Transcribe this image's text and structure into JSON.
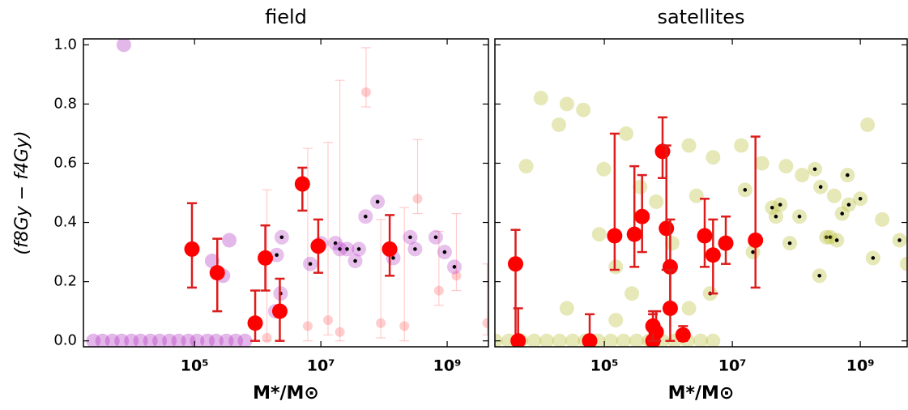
{
  "chart_data": [
    {
      "type": "scatter",
      "title": "field",
      "ylabel": "(f8Gy − f4Gy)",
      "xlabel": "M*/M⊙",
      "xscale": "log",
      "xlim": [
        1740,
        4500000000
      ],
      "ylim": [
        -0.02,
        1.02
      ],
      "xticks": [
        {
          "value": 100000,
          "label": "10⁵"
        },
        {
          "value": 10000000,
          "label": "10⁷"
        },
        {
          "value": 1000000000,
          "label": "10⁹"
        }
      ],
      "yticks": [
        {
          "value": 0,
          "label": "0.0"
        },
        {
          "value": 0.2,
          "label": "0.2"
        },
        {
          "value": 0.4,
          "label": "0.4"
        },
        {
          "value": 0.6,
          "label": "0.6"
        },
        {
          "value": 0.8,
          "label": "0.8"
        },
        {
          "value": 1,
          "label": "1.0"
        }
      ],
      "series": [
        {
          "color": "#ff7070",
          "opacity": 0.35,
          "x": [
            52000000,
            740000000,
            1400000000,
            340000000,
            4300000000,
            89000000,
            20000000,
            6200000,
            210000000,
            1400000,
            13000000
          ],
          "values": [
            0.84,
            0.17,
            0.22,
            0.48,
            0.06,
            0.06,
            0.03,
            0.05,
            0.05,
            0.01,
            0.07
          ],
          "err_low": [
            0.05,
            0.05,
            0.05,
            0.05,
            0.04,
            0.05,
            0.03,
            0.05,
            0.05,
            0.01,
            0.05
          ],
          "err_high": [
            0.15,
            0.2,
            0.21,
            0.2,
            0.2,
            0.35,
            0.85,
            0.6,
            0.4,
            0.5,
            0.6
          ]
        },
        {
          "color": "#b030c0",
          "opacity": 0.35,
          "x": [
            7600,
            355000,
            190000,
            282000,
            2500,
            3500,
            5000,
            7000,
            10000,
            14000,
            20000,
            28000,
            40000,
            56000,
            80000,
            110000,
            160000,
            220000,
            320000,
            450000,
            630000
          ],
          "values": [
            1.0,
            0.34,
            0.27,
            0.22,
            0,
            0,
            0,
            0,
            0,
            0,
            0,
            0,
            0,
            0,
            0,
            0,
            0,
            0,
            0,
            0,
            0
          ]
        },
        {
          "color": "#b030c0",
          "opacity": 0.3,
          "marker": "dot",
          "x": [
            2400000,
            2000000,
            6800000,
            10000000,
            17000000,
            20000000,
            26000000,
            35000000,
            40000000,
            51000000,
            79000000,
            140000000,
            260000000,
            310000000,
            660000000,
            910000000,
            1300000000,
            2300000,
            1900000,
            5100000,
            120000000
          ],
          "values": [
            0.35,
            0.29,
            0.26,
            0.33,
            0.33,
            0.31,
            0.31,
            0.27,
            0.31,
            0.42,
            0.47,
            0.28,
            0.35,
            0.31,
            0.35,
            0.3,
            0.25,
            0.16,
            0.1,
            0.53,
            0.31
          ]
        },
        {
          "color": "#ff0000",
          "opacity": 1,
          "x": [
            91000,
            229000,
            912000,
            1320000,
            2240000,
            5100000,
            9100000,
            123000000
          ],
          "values": [
            0.31,
            0.23,
            0.06,
            0.28,
            0.1,
            0.53,
            0.32,
            0.31
          ],
          "err_low": [
            0.13,
            0.13,
            0.06,
            0.11,
            0.1,
            0.09,
            0.09,
            0.09
          ],
          "err_high": [
            0.155,
            0.115,
            0.11,
            0.11,
            0.11,
            0.055,
            0.09,
            0.115
          ]
        }
      ]
    },
    {
      "type": "scatter",
      "title": "satellites",
      "xlabel": "M*/M⊙",
      "xscale": "log",
      "yticklabels": false,
      "xlim": [
        1950,
        5400000000
      ],
      "ylim": [
        -0.02,
        1.02
      ],
      "xticks": [
        {
          "value": 100000,
          "label": "10⁵"
        },
        {
          "value": 10000000,
          "label": "10⁷"
        },
        {
          "value": 1000000000,
          "label": "10⁹"
        }
      ],
      "yticks": [
        0,
        0.2,
        0.4,
        0.6,
        0.8,
        1
      ],
      "series": [
        {
          "color": "#b8bd30",
          "opacity": 0.35,
          "x": [
            10200,
            26000,
            47000,
            6000,
            19500,
            98000,
            219000,
            363000,
            151000,
            26000,
            269000,
            2100000,
            5000000,
            13800000,
            29000000,
            69000000,
            123000000,
            390000000,
            2200000000,
            5400000000,
            2750000,
            646000,
            83000,
            1150000,
            2100000,
            151000,
            1300000000,
            2000,
            3200,
            5000,
            8000,
            12600,
            20000,
            32000,
            50000,
            80000,
            126000,
            200000,
            320000,
            500000,
            800000,
            1260000,
            2000000,
            3200000,
            5000000
          ],
          "values": [
            0.82,
            0.8,
            0.78,
            0.59,
            0.73,
            0.58,
            0.7,
            0.52,
            0.25,
            0.11,
            0.16,
            0.66,
            0.62,
            0.66,
            0.6,
            0.59,
            0.56,
            0.49,
            0.41,
            0.26,
            0.49,
            0.47,
            0.36,
            0.33,
            0.11,
            0.07,
            0.73,
            0,
            0,
            0,
            0,
            0,
            0,
            0,
            0,
            0,
            0,
            0,
            0,
            0,
            0,
            0,
            0,
            0,
            0
          ]
        },
        {
          "color": "#b8bd30",
          "opacity": 0.35,
          "marker": "dot",
          "x": [
            4500000,
            15800000,
            21000000,
            42000000,
            48000000,
            56000000,
            112000000,
            79000000,
            195000000,
            240000000,
            230000000,
            295000000,
            340000000,
            430000000,
            520000000,
            630000000,
            660000000,
            1000000000,
            1580000000,
            4100000000
          ],
          "values": [
            0.16,
            0.51,
            0.3,
            0.45,
            0.42,
            0.46,
            0.42,
            0.33,
            0.58,
            0.52,
            0.22,
            0.35,
            0.35,
            0.34,
            0.43,
            0.56,
            0.46,
            0.48,
            0.28,
            0.34
          ]
        },
        {
          "color": "#ff0000",
          "opacity": 1,
          "x": [
            4100,
            4500,
            59000,
            145000,
            295000,
            389000,
            575000,
            646000,
            813000,
            933000,
            1070000,
            1070000,
            1700000,
            3700000,
            5000000,
            7900000,
            23000000,
            575000
          ],
          "values": [
            0.26,
            0,
            0,
            0.355,
            0.36,
            0.42,
            0,
            0.03,
            0.64,
            0.38,
            0.25,
            0.11,
            0.02,
            0.355,
            0.29,
            0.33,
            0.34,
            0.05
          ],
          "err_low": [
            0.26,
            0,
            0,
            0.115,
            0.11,
            0.12,
            0,
            0.03,
            0.09,
            0.14,
            0.14,
            0.11,
            0.02,
            0.105,
            0.13,
            0.07,
            0.16,
            0.05
          ],
          "err_high": [
            0.115,
            0.11,
            0.09,
            0.345,
            0.23,
            0.14,
            0.1,
            0.07,
            0.115,
            0.28,
            0.16,
            0.13,
            0.03,
            0.125,
            0.12,
            0.09,
            0.35,
            0.04
          ]
        }
      ]
    }
  ]
}
